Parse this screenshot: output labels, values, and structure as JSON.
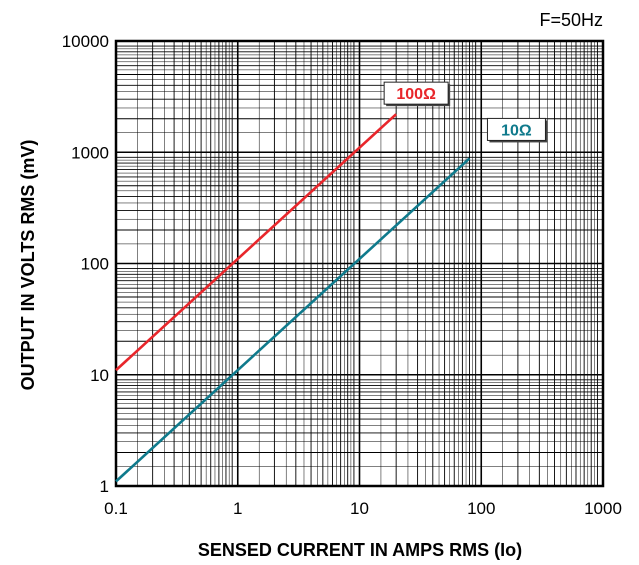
{
  "chart_data": {
    "type": "line",
    "title": "",
    "annotation": "F=50Hz",
    "xlabel": "SENSED CURRENT IN AMPS RMS (Io)",
    "ylabel": "OUTPUT  IN  VOLTS RMS (mV)",
    "xscale": "log",
    "yscale": "log",
    "xlim": [
      0.1,
      1000
    ],
    "ylim": [
      1,
      10000
    ],
    "x_ticks": [
      "0.1",
      "1",
      "10",
      "100",
      "1000"
    ],
    "y_ticks": [
      "1",
      "10",
      "100",
      "1000",
      "10000"
    ],
    "grid": true,
    "series": [
      {
        "name": "100Ω",
        "color": "#e8262b",
        "x": [
          0.1,
          20
        ],
        "y": [
          11,
          2200
        ]
      },
      {
        "name": "10Ω",
        "color": "#0f7a8c",
        "x": [
          0.1,
          80
        ],
        "y": [
          1.1,
          880
        ]
      }
    ]
  }
}
